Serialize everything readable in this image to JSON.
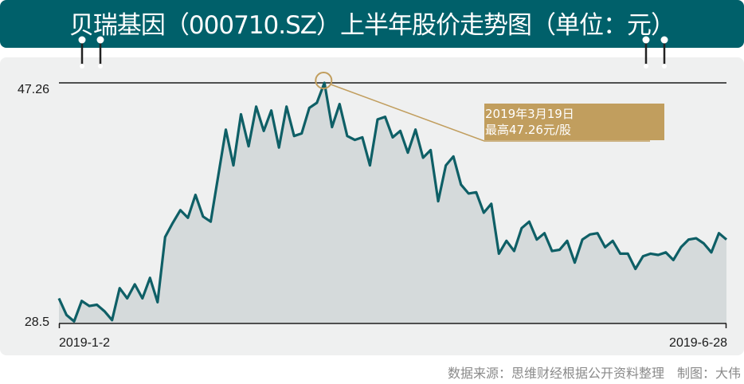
{
  "chart_data": {
    "type": "area",
    "title": "贝瑞基因（000710.SZ）上半年股价走势图（单位：元）",
    "x_start": "2019-1-2",
    "x_end": "2019-6-28",
    "ylim": [
      28.5,
      47.26
    ],
    "yticks": [
      "47.26",
      "28.5"
    ],
    "xticks": [
      "2019-1-2",
      "2019-6-28"
    ],
    "grid": false,
    "values": [
      30.4,
      29.1,
      28.6,
      30.2,
      29.8,
      29.9,
      29.4,
      28.7,
      31.2,
      30.4,
      31.5,
      30.4,
      32.0,
      30.1,
      35.2,
      36.3,
      37.3,
      36.7,
      38.5,
      36.8,
      36.4,
      40.0,
      43.6,
      40.8,
      44.8,
      42.3,
      45.4,
      43.5,
      45.1,
      42.2,
      45.4,
      43.1,
      43.3,
      45.3,
      45.7,
      47.26,
      43.8,
      45.6,
      43.1,
      42.8,
      43.0,
      40.8,
      44.4,
      44.6,
      43.0,
      43.5,
      41.8,
      43.6,
      41.4,
      42.0,
      38.0,
      40.8,
      41.5,
      39.3,
      38.6,
      38.7,
      37.1,
      37.8,
      33.9,
      34.9,
      34.1,
      35.9,
      36.4,
      35.0,
      35.5,
      34.1,
      34.2,
      34.9,
      33.2,
      35.0,
      35.4,
      35.5,
      34.4,
      34.9,
      33.9,
      33.9,
      32.7,
      33.7,
      33.9,
      33.8,
      34.0,
      33.4,
      34.4,
      35.0,
      35.1,
      34.7,
      34.0,
      35.5,
      35.0
    ],
    "annotation": {
      "line1": "2019年3月19日",
      "line2": "最高47.26元/股",
      "value": 47.26
    },
    "colors": {
      "line": "#0e5f66",
      "fill": "#d5dadb",
      "annotation": "#c19e5e",
      "header": "#00606a"
    }
  },
  "footer": "数据来源：思维财经根据公开资料整理　制图：大伟"
}
